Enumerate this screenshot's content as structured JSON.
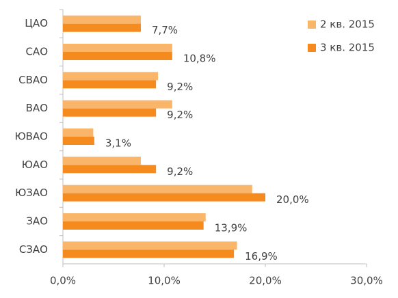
{
  "chart_data": {
    "type": "hbar",
    "categories": [
      "ЦАО",
      "САО",
      "СВАО",
      "ВАО",
      "ЮВАО",
      "ЮАО",
      "ЮЗАО",
      "ЗАО",
      "СЗАО"
    ],
    "series": [
      {
        "name": "2 кв. 2015",
        "color": "#f9b56a",
        "values": [
          7.7,
          10.8,
          9.4,
          10.8,
          3.0,
          7.7,
          18.7,
          14.1,
          17.2
        ]
      },
      {
        "name": "3 кв. 2015",
        "color": "#f58a1f",
        "values": [
          7.7,
          10.8,
          9.2,
          9.2,
          3.1,
          9.2,
          20.0,
          13.9,
          16.9
        ],
        "value_labels": [
          "7,7%",
          "10,8%",
          "9,2%",
          "9,2%",
          "3,1%",
          "9,2%",
          "20,0%",
          "13,9%",
          "16,9%"
        ]
      }
    ],
    "xlim": [
      0,
      30
    ],
    "xticks": [
      {
        "value": 0,
        "label": "0,0%"
      },
      {
        "value": 10,
        "label": "10,0%"
      },
      {
        "value": 20,
        "label": "20,0%"
      },
      {
        "value": 30,
        "label": "30,0%"
      }
    ],
    "legend": "top-right",
    "grid": false
  }
}
